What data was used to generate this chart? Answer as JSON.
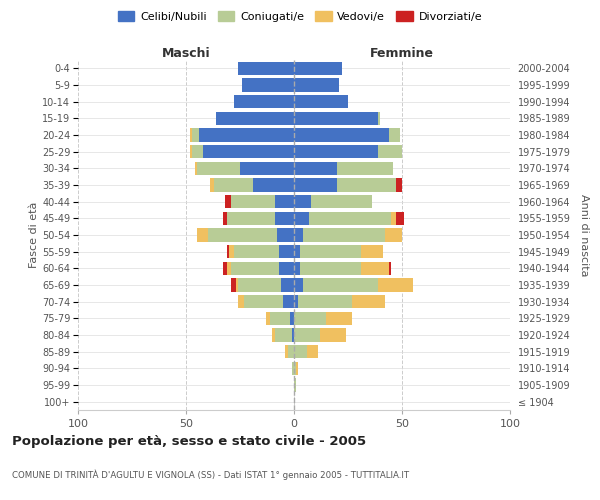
{
  "age_groups": [
    "100+",
    "95-99",
    "90-94",
    "85-89",
    "80-84",
    "75-79",
    "70-74",
    "65-69",
    "60-64",
    "55-59",
    "50-54",
    "45-49",
    "40-44",
    "35-39",
    "30-34",
    "25-29",
    "20-24",
    "15-19",
    "10-14",
    "5-9",
    "0-4"
  ],
  "birth_years": [
    "≤ 1904",
    "1905-1909",
    "1910-1914",
    "1915-1919",
    "1920-1924",
    "1925-1929",
    "1930-1934",
    "1935-1939",
    "1940-1944",
    "1945-1949",
    "1950-1954",
    "1955-1959",
    "1960-1964",
    "1965-1969",
    "1970-1974",
    "1975-1979",
    "1980-1984",
    "1985-1989",
    "1990-1994",
    "1995-1999",
    "2000-2004"
  ],
  "male": {
    "celibi": [
      0,
      0,
      0,
      0,
      1,
      2,
      5,
      6,
      7,
      7,
      8,
      9,
      9,
      19,
      25,
      42,
      44,
      36,
      28,
      24,
      26
    ],
    "coniugati": [
      0,
      0,
      1,
      3,
      8,
      9,
      18,
      20,
      22,
      21,
      32,
      22,
      20,
      18,
      20,
      5,
      3,
      0,
      0,
      0,
      0
    ],
    "vedovi": [
      0,
      0,
      0,
      1,
      1,
      2,
      3,
      1,
      2,
      2,
      5,
      0,
      0,
      2,
      1,
      1,
      1,
      0,
      0,
      0,
      0
    ],
    "divorziati": [
      0,
      0,
      0,
      0,
      0,
      0,
      0,
      2,
      2,
      1,
      0,
      2,
      3,
      0,
      0,
      0,
      0,
      0,
      0,
      0,
      0
    ]
  },
  "female": {
    "nubili": [
      0,
      0,
      0,
      0,
      0,
      0,
      2,
      4,
      3,
      3,
      4,
      7,
      8,
      20,
      20,
      39,
      44,
      39,
      25,
      21,
      22
    ],
    "coniugate": [
      0,
      1,
      1,
      6,
      12,
      15,
      25,
      35,
      28,
      28,
      38,
      38,
      28,
      27,
      26,
      11,
      5,
      1,
      0,
      0,
      0
    ],
    "vedove": [
      0,
      0,
      1,
      5,
      12,
      12,
      15,
      16,
      13,
      10,
      8,
      2,
      0,
      0,
      0,
      0,
      0,
      0,
      0,
      0,
      0
    ],
    "divorziate": [
      0,
      0,
      0,
      0,
      0,
      0,
      0,
      0,
      1,
      0,
      0,
      4,
      0,
      3,
      0,
      0,
      0,
      0,
      0,
      0,
      0
    ]
  },
  "colors": {
    "celibi": "#4472c4",
    "coniugati": "#b8cc96",
    "vedovi": "#f0c060",
    "divorziati": "#cc2222"
  },
  "xlim": 100,
  "title": "Popolazione per età, sesso e stato civile - 2005",
  "subtitle": "COMUNE DI TRINITÀ D'AGULTU E VIGNOLA (SS) - Dati ISTAT 1° gennaio 2005 - TUTTITALIA.IT",
  "ylabel_left": "Fasce di età",
  "ylabel_right": "Anni di nascita",
  "xlabel_left": "Maschi",
  "xlabel_right": "Femmine",
  "bg_color": "#ffffff"
}
